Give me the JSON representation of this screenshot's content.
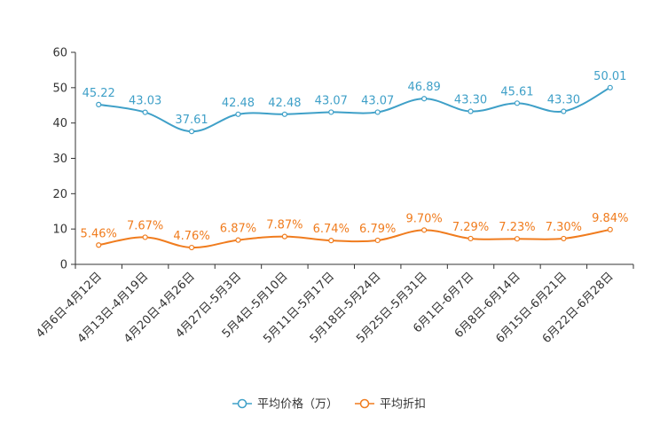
{
  "chart_data": {
    "type": "line",
    "title": "",
    "xlabel": "",
    "ylabel": "",
    "ylim": [
      0,
      60
    ],
    "yticks": [
      0,
      10,
      20,
      30,
      40,
      50,
      60
    ],
    "categories": [
      "4月6日-4月12日",
      "4月13日-4月19日",
      "4月20日-4月26日",
      "4月27日-5月3日",
      "5月4日-5月10日",
      "5月11日-5月17日",
      "5月18日-5月24日",
      "5月25日-5月31日",
      "6月1日-6月7日",
      "6月8日-6月14日",
      "6月15日-6月21日",
      "6月22日-6月28日"
    ],
    "series": [
      {
        "name": "平均价格（万）",
        "color": "#3fa0c8",
        "values": [
          45.22,
          43.03,
          37.61,
          42.48,
          42.48,
          43.07,
          43.07,
          46.89,
          43.3,
          45.61,
          43.3,
          50.01
        ],
        "labels": [
          "45.22",
          "43.03",
          "37.61",
          "42.48",
          "42.48",
          "43.07",
          "43.07",
          "46.89",
          "43.30",
          "45.61",
          "43.30",
          "50.01"
        ]
      },
      {
        "name": "平均折扣",
        "color": "#f07c1e",
        "values": [
          5.46,
          7.67,
          4.76,
          6.87,
          7.87,
          6.74,
          6.79,
          9.7,
          7.29,
          7.23,
          7.3,
          9.84
        ],
        "labels": [
          "5.46%",
          "7.67%",
          "4.76%",
          "6.87%",
          "7.87%",
          "6.74%",
          "6.79%",
          "9.70%",
          "7.29%",
          "7.23%",
          "7.30%",
          "9.84%"
        ]
      }
    ],
    "legend_position": "bottom-center",
    "grid": false
  }
}
